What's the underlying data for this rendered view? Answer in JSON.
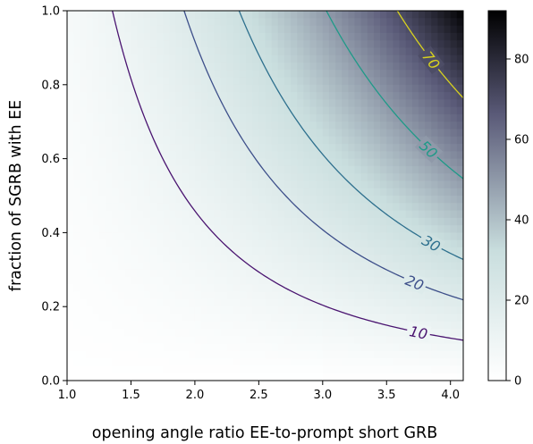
{
  "chart_data": {
    "type": "contour",
    "title": "",
    "xlabel": "opening angle ratio EE-to-prompt short GRB",
    "ylabel": "fraction of SGRB with EE",
    "xlim": [
      1.0,
      4.1
    ],
    "ylim": [
      0.0,
      1.0
    ],
    "x_ticks": [
      "1.0",
      "1.5",
      "2.0",
      "2.5",
      "3.0",
      "3.5",
      "4.0"
    ],
    "y_ticks": [
      "0.0",
      "0.2",
      "0.4",
      "0.6",
      "0.8",
      "1.0"
    ],
    "field": "z = 5.45 * y * x^2",
    "colormap": "bone_r",
    "colorbar": {
      "range": [
        0,
        92
      ],
      "ticks": [
        "0",
        "20",
        "40",
        "60",
        "80"
      ]
    },
    "contours": [
      {
        "level": 10,
        "label": "10",
        "color": "#4a1470",
        "label_x": 3.75
      },
      {
        "level": 20,
        "label": "20",
        "color": "#3d4f8a",
        "label_x": 3.72
      },
      {
        "level": 30,
        "label": "30",
        "color": "#2e708e",
        "label_x": 3.85
      },
      {
        "level": 50,
        "label": "50",
        "color": "#1f9a88",
        "label_x": 3.83
      },
      {
        "level": 70,
        "label": "70",
        "color": "#d8d21e",
        "label_x": 3.85
      }
    ]
  }
}
